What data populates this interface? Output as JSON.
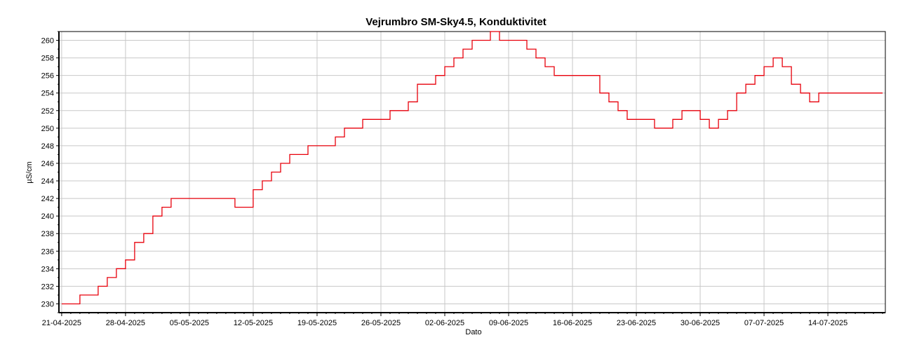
{
  "chart_data": {
    "type": "line",
    "title": "Vejrumbro SM-Sky4.5, Konduktivitet",
    "xlabel": "Dato",
    "ylabel": "µS/cm",
    "x_tick_labels": [
      "21-04-2025",
      "28-04-2025",
      "05-05-2025",
      "12-05-2025",
      "19-05-2025",
      "26-05-2025",
      "02-06-2025",
      "09-06-2025",
      "16-06-2025",
      "23-06-2025",
      "30-06-2025",
      "07-07-2025",
      "14-07-2025"
    ],
    "xlim": [
      "2025-04-21",
      "2025-07-20"
    ],
    "ylim": [
      229,
      261
    ],
    "y_ticks": [
      230,
      232,
      234,
      236,
      238,
      240,
      242,
      244,
      246,
      248,
      250,
      252,
      254,
      256,
      258,
      260
    ],
    "grid": true,
    "series": [
      {
        "color": "#e8000b",
        "x": [
          "2025-04-21",
          "2025-04-22",
          "2025-04-23",
          "2025-04-24",
          "2025-04-25",
          "2025-04-26",
          "2025-04-27",
          "2025-04-28",
          "2025-04-29",
          "2025-04-30",
          "2025-05-01",
          "2025-05-02",
          "2025-05-03",
          "2025-05-04",
          "2025-05-05",
          "2025-05-06",
          "2025-05-07",
          "2025-05-08",
          "2025-05-09",
          "2025-05-10",
          "2025-05-11",
          "2025-05-12",
          "2025-05-13",
          "2025-05-14",
          "2025-05-15",
          "2025-05-16",
          "2025-05-17",
          "2025-05-18",
          "2025-05-19",
          "2025-05-20",
          "2025-05-21",
          "2025-05-22",
          "2025-05-23",
          "2025-05-24",
          "2025-05-25",
          "2025-05-26",
          "2025-05-27",
          "2025-05-28",
          "2025-05-29",
          "2025-05-30",
          "2025-05-31",
          "2025-06-01",
          "2025-06-02",
          "2025-06-03",
          "2025-06-04",
          "2025-06-05",
          "2025-06-06",
          "2025-06-07",
          "2025-06-08",
          "2025-06-09",
          "2025-06-10",
          "2025-06-11",
          "2025-06-12",
          "2025-06-13",
          "2025-06-14",
          "2025-06-15",
          "2025-06-16",
          "2025-06-17",
          "2025-06-18",
          "2025-06-19",
          "2025-06-20",
          "2025-06-21",
          "2025-06-22",
          "2025-06-23",
          "2025-06-24",
          "2025-06-25",
          "2025-06-26",
          "2025-06-27",
          "2025-06-28",
          "2025-06-29",
          "2025-06-30",
          "2025-07-01",
          "2025-07-02",
          "2025-07-03",
          "2025-07-04",
          "2025-07-05",
          "2025-07-06",
          "2025-07-07",
          "2025-07-08",
          "2025-07-09",
          "2025-07-10",
          "2025-07-11",
          "2025-07-12",
          "2025-07-13",
          "2025-07-14",
          "2025-07-15",
          "2025-07-16",
          "2025-07-17",
          "2025-07-18",
          "2025-07-19",
          "2025-07-20"
        ],
        "y": [
          230,
          230,
          231,
          231,
          232,
          233,
          234,
          235,
          237,
          238,
          240,
          241,
          242,
          242,
          242,
          242,
          242,
          242,
          242,
          241,
          241,
          243,
          244,
          245,
          246,
          247,
          247,
          248,
          248,
          248,
          249,
          250,
          250,
          251,
          251,
          251,
          252,
          252,
          253,
          255,
          255,
          256,
          257,
          258,
          259,
          260,
          260,
          261,
          260,
          260,
          260,
          259,
          258,
          257,
          256,
          256,
          256,
          256,
          256,
          254,
          253,
          252,
          251,
          251,
          251,
          250,
          250,
          251,
          252,
          252,
          251,
          250,
          251,
          252,
          254,
          255,
          256,
          257,
          258,
          257,
          255,
          254,
          253,
          254,
          254,
          254,
          254,
          254,
          254,
          254,
          254
        ]
      }
    ]
  }
}
